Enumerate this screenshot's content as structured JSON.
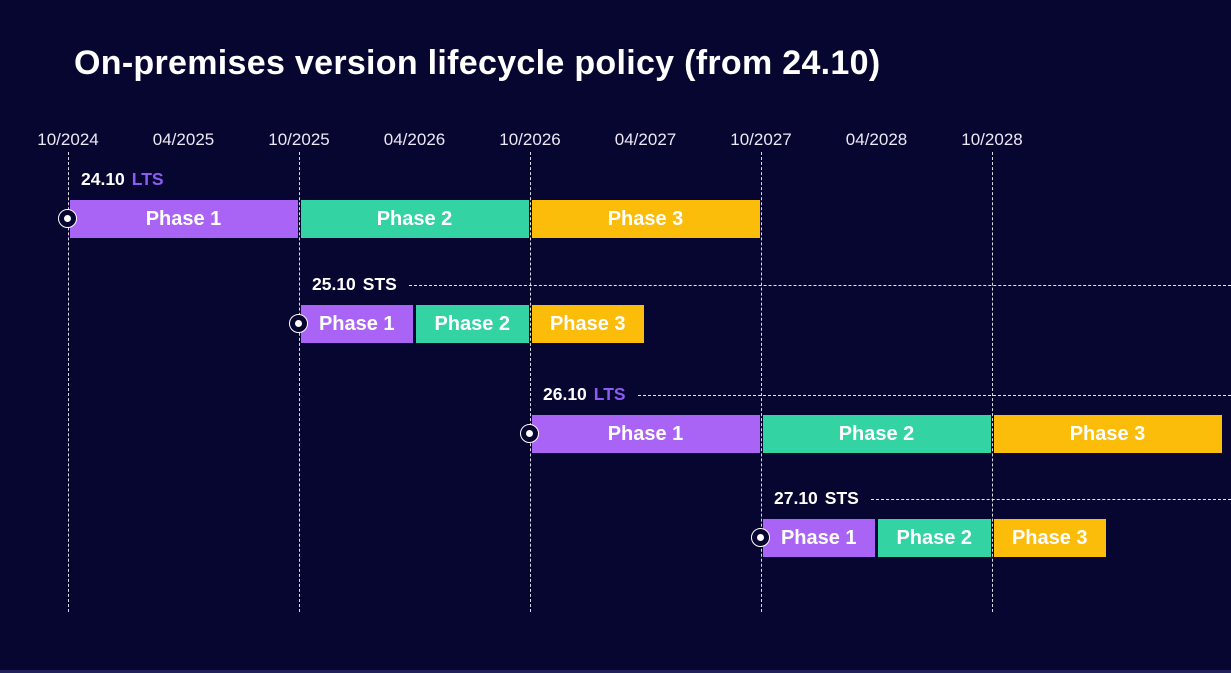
{
  "title": "On-premises version lifecycle policy (from 24.10)",
  "colors": {
    "background": "#060630",
    "title_text": "#ffffff",
    "tick_text": "#ece8f5",
    "phase_colors": [
      "#a964f6",
      "#34d3a4",
      "#fcbc0a"
    ],
    "lts_type_color": "#8d5bf1",
    "sts_type_color": "#ffffff",
    "gridline": "#ffffff"
  },
  "chart_data": {
    "type": "gantt",
    "title": "On-premises version lifecycle policy (from 24.10)",
    "axis": {
      "ticks": [
        "10/2024",
        "04/2025",
        "10/2025",
        "04/2026",
        "10/2026",
        "04/2027",
        "10/2027",
        "04/2028",
        "10/2028"
      ],
      "gridline_ticks": [
        "10/2024",
        "10/2025",
        "10/2026",
        "10/2027",
        "10/2028"
      ],
      "gridline_style": "vertical dashed lines at every October tick",
      "range": [
        "10/2024",
        "10/2029"
      ]
    },
    "legend": "none",
    "releases": [
      {
        "version": "24.10",
        "type": "LTS",
        "has_leader_line": false,
        "phases": [
          {
            "label": "Phase 1",
            "start": "10/2024",
            "end": "10/2025"
          },
          {
            "label": "Phase 2",
            "start": "10/2025",
            "end": "10/2026"
          },
          {
            "label": "Phase 3",
            "start": "10/2026",
            "end": "10/2027"
          }
        ]
      },
      {
        "version": "25.10",
        "type": "STS",
        "has_leader_line": true,
        "phases": [
          {
            "label": "Phase 1",
            "start": "10/2025",
            "end": "04/2026"
          },
          {
            "label": "Phase 2",
            "start": "04/2026",
            "end": "10/2026"
          },
          {
            "label": "Phase 3",
            "start": "10/2026",
            "end": "04/2027"
          }
        ]
      },
      {
        "version": "26.10",
        "type": "LTS",
        "has_leader_line": true,
        "phases": [
          {
            "label": "Phase 1",
            "start": "10/2026",
            "end": "10/2027"
          },
          {
            "label": "Phase 2",
            "start": "10/2027",
            "end": "10/2028"
          },
          {
            "label": "Phase 3",
            "start": "10/2028",
            "end": "10/2029"
          }
        ]
      },
      {
        "version": "27.10",
        "type": "STS",
        "has_leader_line": true,
        "phases": [
          {
            "label": "Phase 1",
            "start": "10/2027",
            "end": "04/2028"
          },
          {
            "label": "Phase 2",
            "start": "04/2028",
            "end": "10/2028"
          },
          {
            "label": "Phase 3",
            "start": "10/2028",
            "end": "04/2029"
          }
        ]
      }
    ]
  }
}
